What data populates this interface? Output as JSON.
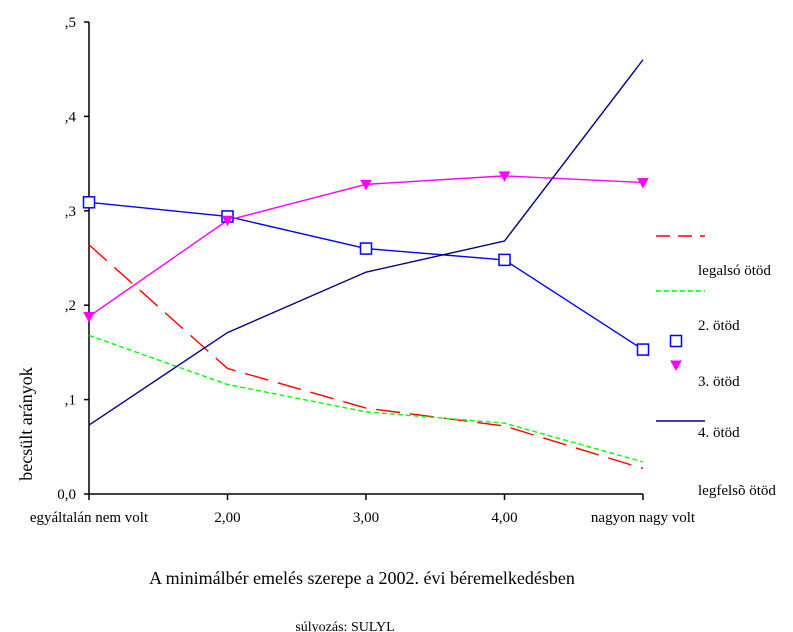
{
  "chart_data": {
    "type": "line",
    "xlabel": "A minimálbér emelés szerepe a 2002. évi béremelkedésben",
    "ylabel": "becsült arányok",
    "footnote": "súlyozás: SULYL",
    "categories": [
      "egyáltalán nem volt",
      "2,00",
      "3,00",
      "4,00",
      "nagyon nagy volt"
    ],
    "y_ticks": [
      ",5",
      ",4",
      ",3",
      ",2",
      ",1",
      "0,0"
    ],
    "ylim": [
      0,
      0.5
    ],
    "grid": false,
    "legend_position": "right",
    "series": [
      {
        "name": "legalsó ötöd",
        "values": [
          0.264,
          0.133,
          0.091,
          0.072,
          0.027
        ],
        "color": "#ff0000",
        "style": "long-dash",
        "marker": "none"
      },
      {
        "name": "2. ötöd",
        "values": [
          0.168,
          0.116,
          0.087,
          0.075,
          0.034
        ],
        "color": "#00ff00",
        "style": "short-dash",
        "marker": "none"
      },
      {
        "name": "3. ötöd",
        "values": [
          0.309,
          0.294,
          0.26,
          0.248,
          0.153
        ],
        "color": "#0000ff",
        "style": "solid",
        "marker": "square"
      },
      {
        "name": "4. ötöd",
        "values": [
          0.188,
          0.29,
          0.328,
          0.337,
          0.33
        ],
        "color": "#ff00ff",
        "style": "solid",
        "marker": "triangle-down"
      },
      {
        "name": "legfelsõ ötöd",
        "values": [
          0.073,
          0.171,
          0.235,
          0.268,
          0.46
        ],
        "color": "#000080",
        "style": "solid",
        "marker": "none"
      }
    ]
  }
}
